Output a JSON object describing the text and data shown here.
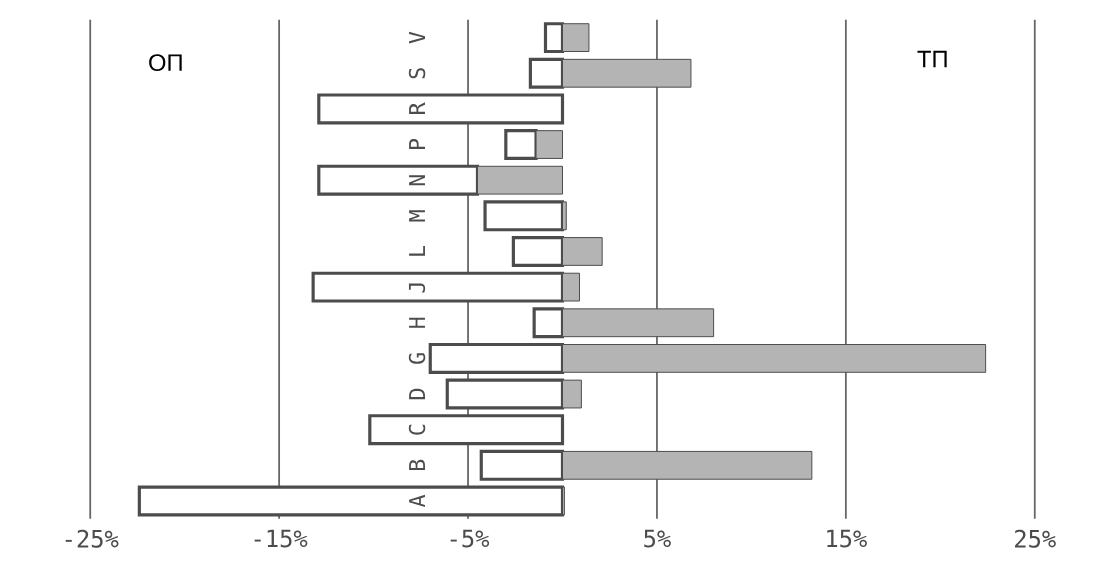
{
  "chart_data": {
    "type": "bar",
    "orientation": "horizontal",
    "stacked": true,
    "categories": [
      "V",
      "S",
      "R",
      "P",
      "N",
      "M",
      "L",
      "J",
      "H",
      "G",
      "D",
      "C",
      "B",
      "A"
    ],
    "series": [
      {
        "name": "ТП",
        "color": "#b4b4b4",
        "values": [
          1.4,
          6.8,
          null,
          -1.4,
          -4.5,
          0.2,
          2.1,
          0.9,
          8.0,
          22.4,
          1.0,
          null,
          13.2,
          0.1
        ]
      },
      {
        "name": "ОП",
        "color": "#ffffff",
        "values": [
          -0.9,
          -1.7,
          -12.9,
          -1.6,
          -8.4,
          -4.1,
          -2.6,
          -13.2,
          -1.5,
          -7.0,
          -6.1,
          -10.2,
          -4.3,
          -22.4
        ]
      }
    ],
    "xlim": [
      -25,
      25
    ],
    "xticks": [
      {
        "value": -25,
        "label": "-25%"
      },
      {
        "value": -15,
        "label": "-15%"
      },
      {
        "value": -5,
        "label": "-5%"
      },
      {
        "value": 5,
        "label": "5%"
      },
      {
        "value": 15,
        "label": "15%"
      },
      {
        "value": 25,
        "label": "25%"
      }
    ],
    "grid": "x"
  }
}
